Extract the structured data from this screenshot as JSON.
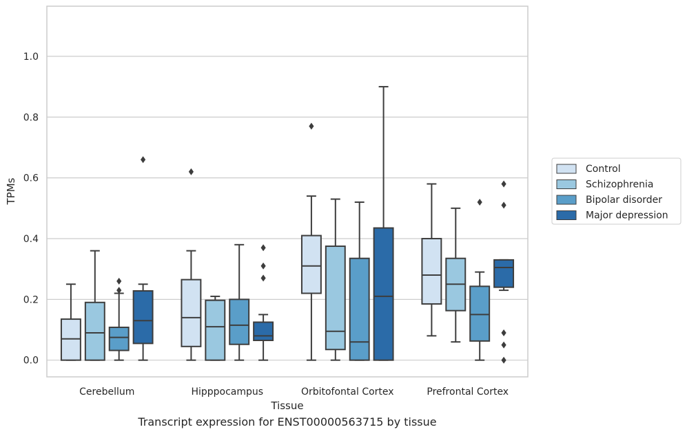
{
  "chart_data": {
    "type": "box",
    "caption": "Transcript expression for ENST00000563715 by tissue",
    "xlabel": "Tissue",
    "ylabel": "TPMs",
    "ylim": [
      -0.055,
      1.165
    ],
    "yticks": [
      0.0,
      0.2,
      0.4,
      0.6,
      0.8,
      1.0
    ],
    "ytick_labels": [
      "0.0",
      "0.2",
      "0.4",
      "0.6",
      "0.8",
      "1.0"
    ],
    "grid": true,
    "legend_position": "right",
    "categories": [
      "Cerebellum",
      "Hipppocampus",
      "Orbitofontal Cortex",
      "Prefrontal Cortex"
    ],
    "series": [
      {
        "name": "Control",
        "color": "#d1e2f2",
        "boxes": [
          {
            "whislo": 0.0,
            "q1": 0.0,
            "med": 0.07,
            "q3": 0.135,
            "whishi": 0.25,
            "fliers": []
          },
          {
            "whislo": 0.0,
            "q1": 0.045,
            "med": 0.14,
            "q3": 0.265,
            "whishi": 0.36,
            "fliers": [
              0.62
            ]
          },
          {
            "whislo": 0.0,
            "q1": 0.22,
            "med": 0.31,
            "q3": 0.41,
            "whishi": 0.54,
            "fliers": [
              0.77
            ]
          },
          {
            "whislo": 0.08,
            "q1": 0.185,
            "med": 0.28,
            "q3": 0.4,
            "whishi": 0.58,
            "fliers": []
          }
        ]
      },
      {
        "name": "Schizophrenia",
        "color": "#9ac8e0",
        "boxes": [
          {
            "whislo": 0.0,
            "q1": 0.0,
            "med": 0.09,
            "q3": 0.19,
            "whishi": 0.36,
            "fliers": []
          },
          {
            "whislo": 0.0,
            "q1": 0.0,
            "med": 0.11,
            "q3": 0.197,
            "whishi": 0.21,
            "fliers": []
          },
          {
            "whislo": 0.0,
            "q1": 0.035,
            "med": 0.095,
            "q3": 0.375,
            "whishi": 0.53,
            "fliers": []
          },
          {
            "whislo": 0.06,
            "q1": 0.163,
            "med": 0.25,
            "q3": 0.335,
            "whishi": 0.5,
            "fliers": []
          }
        ]
      },
      {
        "name": "Bipolar disorder",
        "color": "#5a9ec9",
        "boxes": [
          {
            "whislo": 0.0,
            "q1": 0.032,
            "med": 0.075,
            "q3": 0.108,
            "whishi": 0.22,
            "fliers": [
              0.26,
              0.23
            ]
          },
          {
            "whislo": 0.0,
            "q1": 0.052,
            "med": 0.115,
            "q3": 0.2,
            "whishi": 0.38,
            "fliers": []
          },
          {
            "whislo": 0.0,
            "q1": 0.0,
            "med": 0.06,
            "q3": 0.335,
            "whishi": 0.52,
            "fliers": []
          },
          {
            "whislo": 0.0,
            "q1": 0.063,
            "med": 0.15,
            "q3": 0.243,
            "whishi": 0.29,
            "fliers": [
              0.52
            ]
          }
        ]
      },
      {
        "name": "Major depression",
        "color": "#2b6ba8",
        "boxes": [
          {
            "whislo": 0.0,
            "q1": 0.055,
            "med": 0.13,
            "q3": 0.228,
            "whishi": 0.25,
            "fliers": [
              0.66
            ]
          },
          {
            "whislo": 0.0,
            "q1": 0.065,
            "med": 0.08,
            "q3": 0.125,
            "whishi": 0.15,
            "fliers": [
              0.37,
              0.31,
              0.27
            ]
          },
          {
            "whislo": 0.0,
            "q1": 0.0,
            "med": 0.21,
            "q3": 0.435,
            "whishi": 0.9,
            "fliers": []
          },
          {
            "whislo": 0.23,
            "q1": 0.24,
            "med": 0.305,
            "q3": 0.33,
            "whishi": 0.33,
            "fliers": [
              0.58,
              0.51,
              0.09,
              0.05,
              0.0
            ]
          }
        ]
      }
    ]
  }
}
